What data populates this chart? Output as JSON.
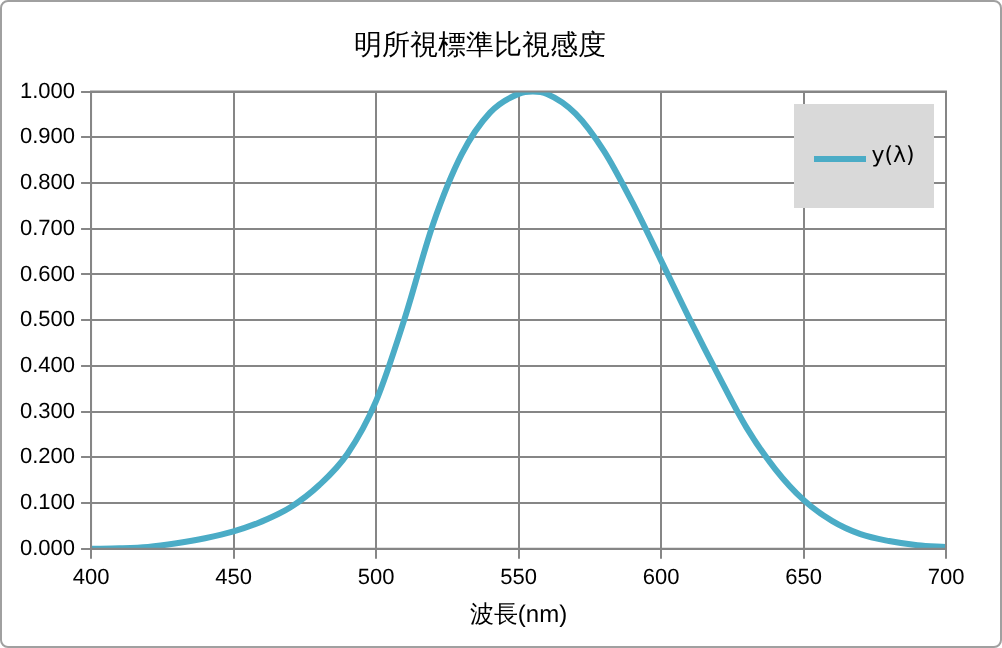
{
  "chart_data": {
    "type": "line",
    "title": "明所視標準比視感度",
    "xlabel": "波長(nm)",
    "x": [
      400,
      410,
      420,
      430,
      440,
      450,
      460,
      470,
      480,
      490,
      500,
      510,
      520,
      530,
      540,
      550,
      555,
      560,
      570,
      580,
      590,
      600,
      610,
      620,
      630,
      640,
      650,
      660,
      670,
      680,
      690,
      700
    ],
    "series": [
      {
        "name": "y(λ)",
        "color": "#4bacc6",
        "values": [
          0.0,
          0.001,
          0.004,
          0.012,
          0.023,
          0.038,
          0.06,
          0.091,
          0.139,
          0.208,
          0.323,
          0.503,
          0.71,
          0.862,
          0.954,
          0.995,
          1.0,
          0.995,
          0.952,
          0.87,
          0.757,
          0.631,
          0.503,
          0.381,
          0.265,
          0.175,
          0.107,
          0.061,
          0.032,
          0.017,
          0.008,
          0.004
        ]
      }
    ],
    "xlim": [
      400,
      700
    ],
    "xticks": [
      400,
      450,
      500,
      550,
      600,
      650,
      700
    ],
    "ylim": [
      0,
      1
    ],
    "yticks": [
      {
        "value": 0,
        "label": "0.000"
      },
      {
        "value": 0.1,
        "label": "0.100"
      },
      {
        "value": 0.2,
        "label": "0.200"
      },
      {
        "value": 0.3,
        "label": "0.300"
      },
      {
        "value": 0.4,
        "label": "0.400"
      },
      {
        "value": 0.5,
        "label": "0.500"
      },
      {
        "value": 0.6,
        "label": "0.600"
      },
      {
        "value": 0.7,
        "label": "0.700"
      },
      {
        "value": 0.8,
        "label": "0.800"
      },
      {
        "value": 0.9,
        "label": "0.900"
      },
      {
        "value": 1,
        "label": "1.000"
      }
    ],
    "grid": true,
    "legend": "top right",
    "marker": "none",
    "line_style": "solid"
  }
}
